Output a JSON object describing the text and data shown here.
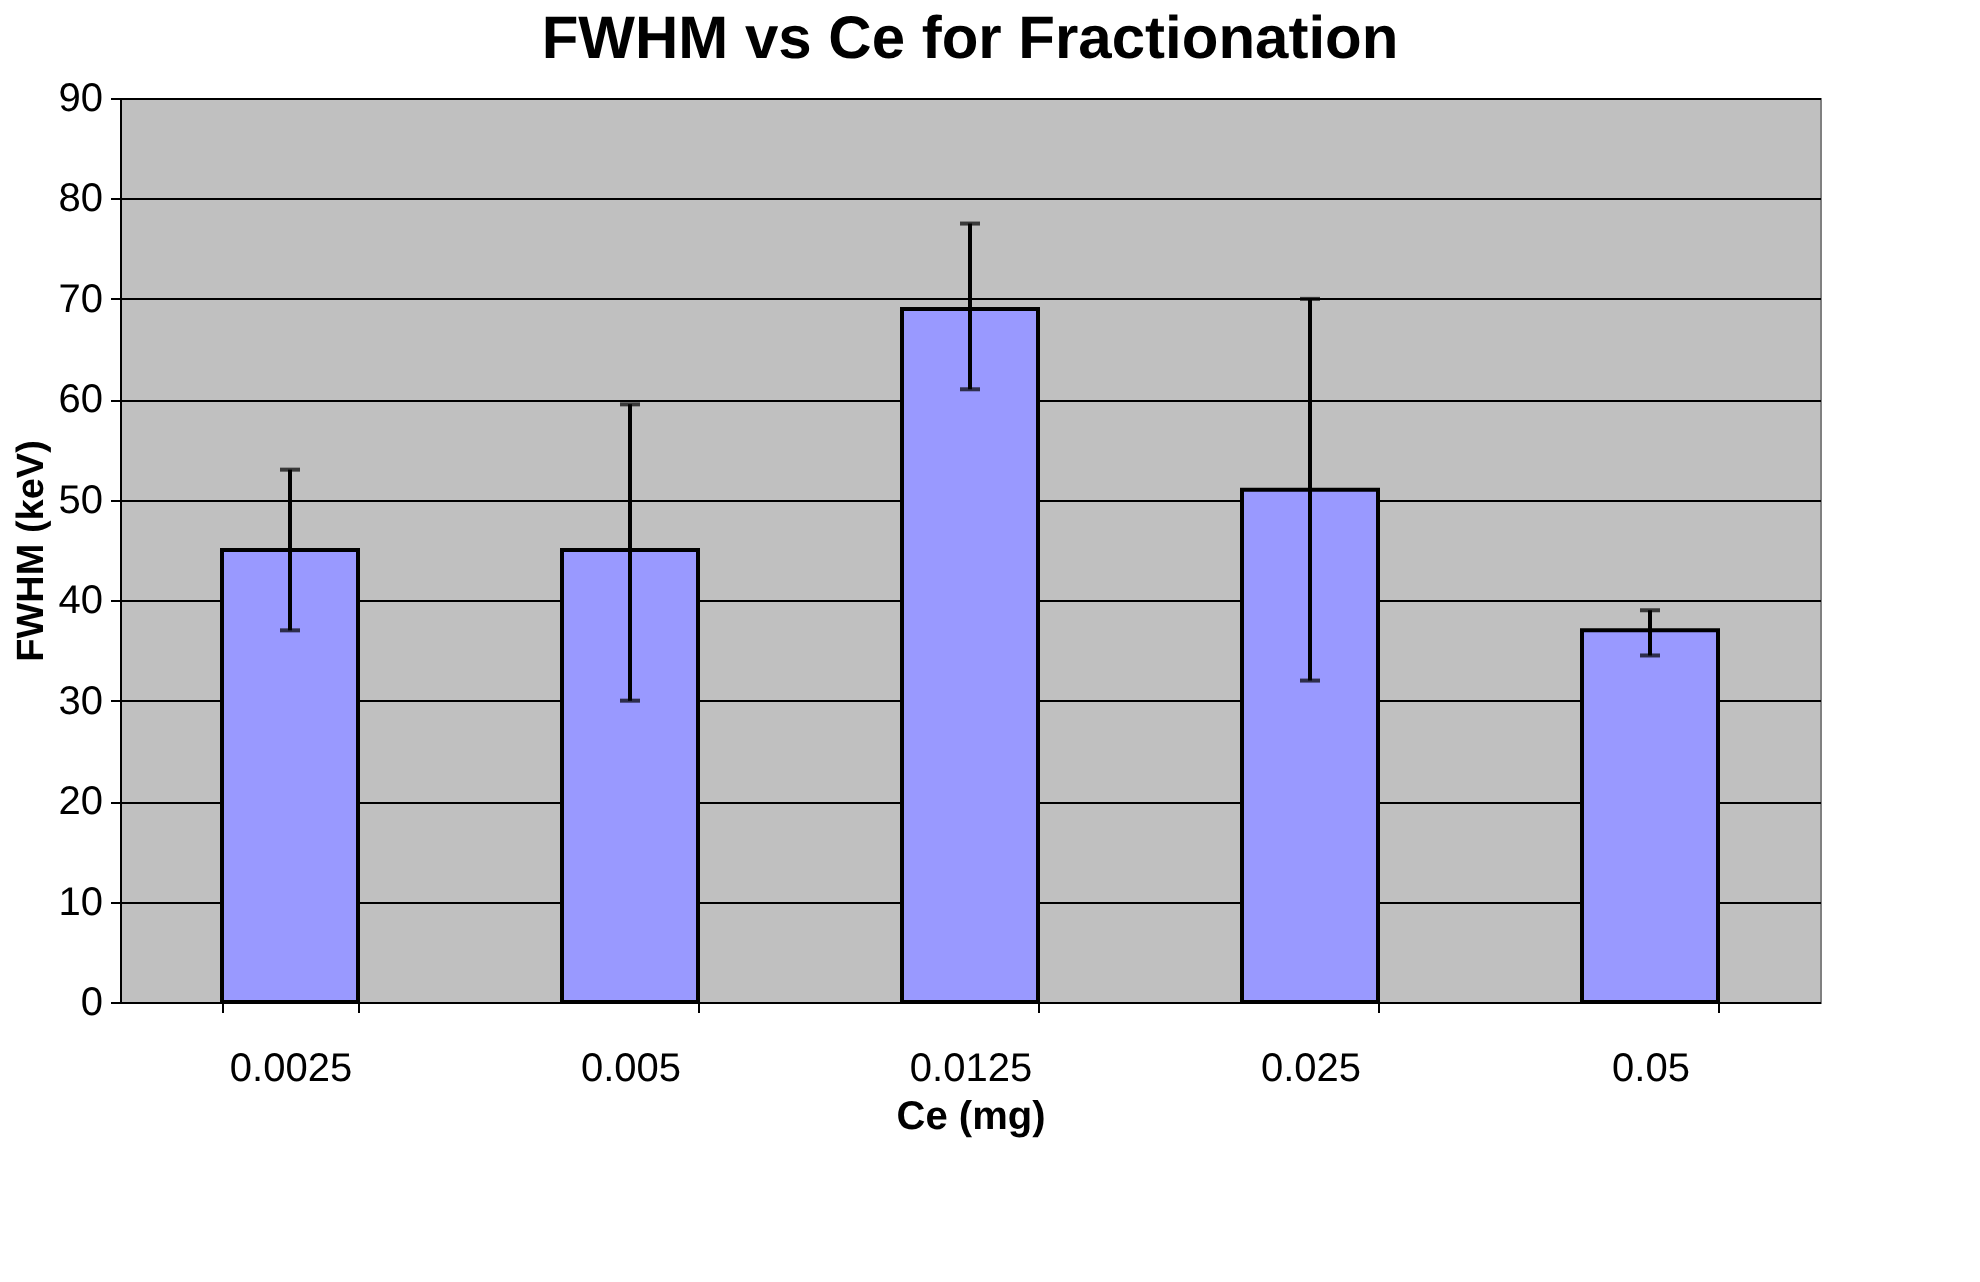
{
  "chart_data": {
    "type": "bar",
    "title": "FWHM vs Ce for Fractionation",
    "xlabel": "Ce (mg)",
    "ylabel": "FWHM (keV)",
    "categories": [
      "0.0025",
      "0.005",
      "0.0125",
      "0.025",
      "0.05"
    ],
    "values": [
      45,
      45,
      69,
      51,
      37
    ],
    "errors": [
      [
        37,
        53
      ],
      [
        30,
        59.5
      ],
      [
        61,
        77.5
      ],
      [
        32,
        70
      ],
      [
        34.5,
        39
      ]
    ],
    "color": "#9999ff",
    "ylim": [
      0,
      90
    ],
    "yticks": [
      0,
      10,
      20,
      30,
      40,
      50,
      60,
      70,
      80,
      90
    ],
    "grid": "y"
  }
}
